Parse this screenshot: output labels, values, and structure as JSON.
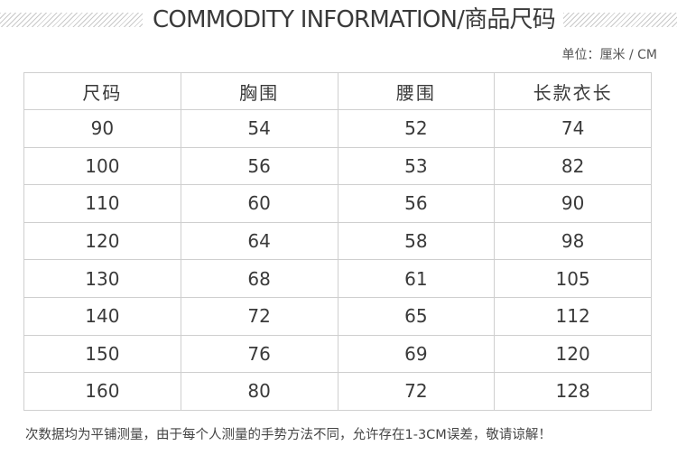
{
  "header": {
    "title": "COMMODITY INFORMATION/商品尺码",
    "unit": "单位：厘米 / CM"
  },
  "table": {
    "columns": [
      "尺码",
      "胸围",
      "腰围",
      "长款衣长"
    ],
    "rows": [
      [
        "90",
        "54",
        "52",
        "74"
      ],
      [
        "100",
        "56",
        "53",
        "82"
      ],
      [
        "110",
        "60",
        "56",
        "90"
      ],
      [
        "120",
        "64",
        "58",
        "98"
      ],
      [
        "130",
        "68",
        "61",
        "105"
      ],
      [
        "140",
        "72",
        "65",
        "112"
      ],
      [
        "150",
        "76",
        "69",
        "120"
      ],
      [
        "160",
        "80",
        "72",
        "128"
      ]
    ]
  },
  "footer": {
    "note": "次数据均为平铺测量，由于每个人测量的手势方法不同，允许存在1-3CM误差，敬请谅解！"
  }
}
